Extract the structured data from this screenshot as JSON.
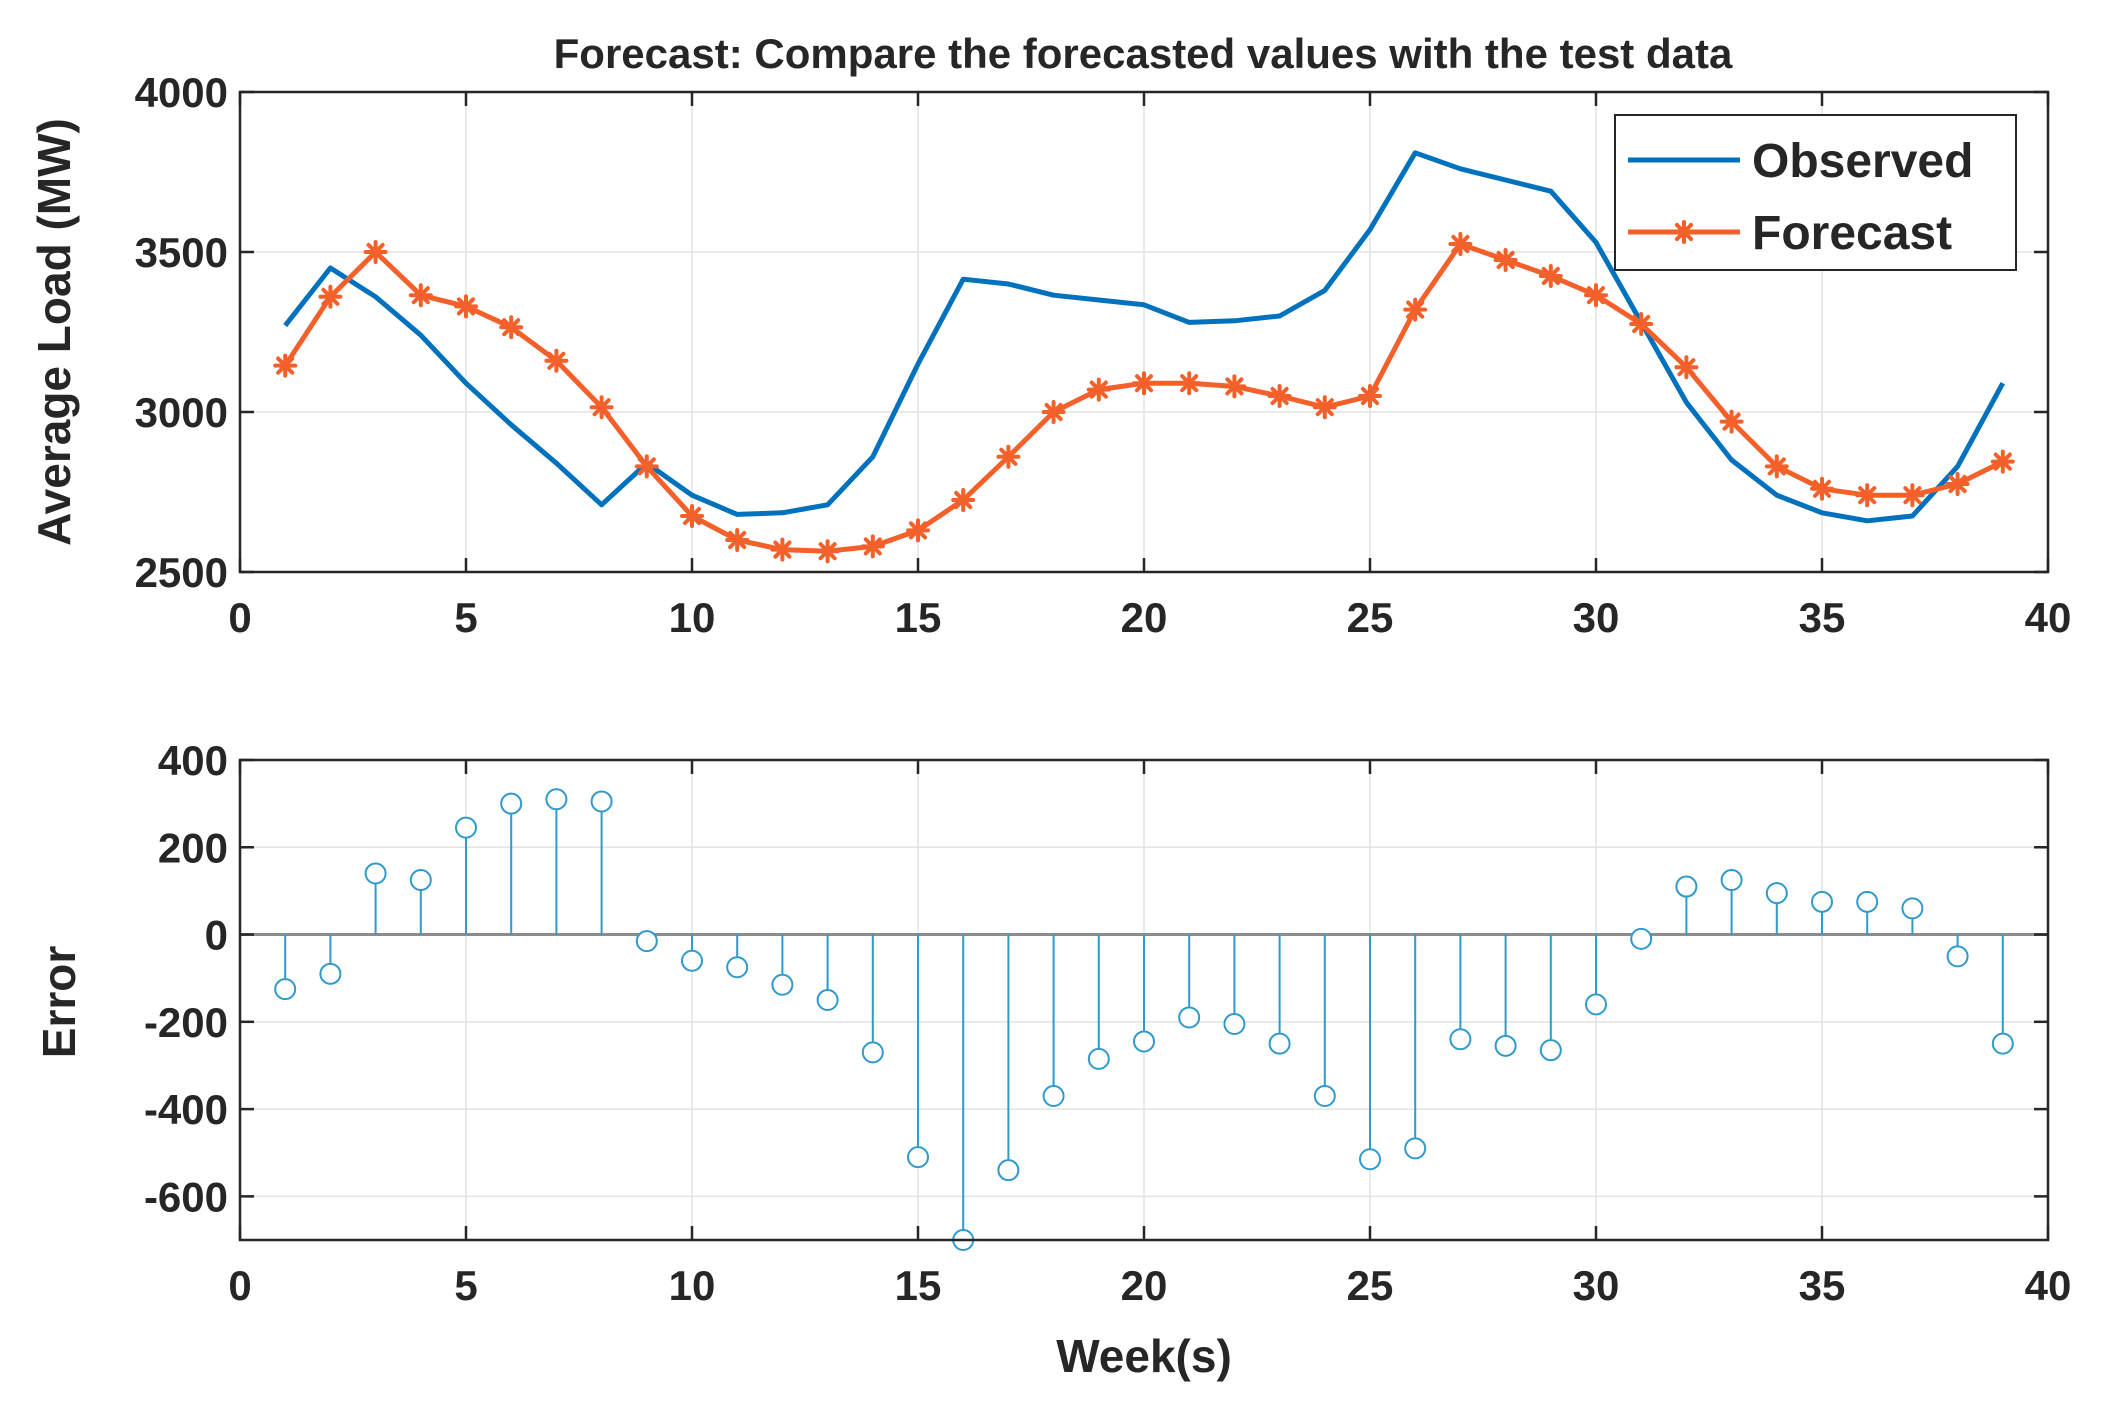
{
  "colors": {
    "observed": "#0072BD",
    "forecast": "#F4602A",
    "error": "#2F9ACB",
    "baseline": "#8C8C8C",
    "grid": "#E3E3E3",
    "axes": "#262626"
  },
  "chart_data": [
    {
      "type": "line",
      "title": "Forecast: Compare the forecasted values with the test data",
      "xlabel": "",
      "ylabel": "Average Load (MW)",
      "xlim": [
        0,
        40
      ],
      "ylim": [
        2500,
        4000
      ],
      "xticks": [
        0,
        5,
        10,
        15,
        20,
        25,
        30,
        35,
        40
      ],
      "yticks": [
        2500,
        3000,
        3500,
        4000
      ],
      "xtick_labels": [
        "0",
        "5",
        "10",
        "15",
        "20",
        "25",
        "30",
        "35",
        "40"
      ],
      "ytick_labels": [
        "2500",
        "3000",
        "3500",
        "4000"
      ],
      "grid": true,
      "legend_position": "top-right",
      "x": [
        1,
        2,
        3,
        4,
        5,
        6,
        7,
        8,
        9,
        10,
        11,
        12,
        13,
        14,
        15,
        16,
        17,
        18,
        19,
        20,
        21,
        22,
        23,
        24,
        25,
        26,
        27,
        28,
        29,
        30,
        31,
        32,
        33,
        34,
        35,
        36,
        37,
        38,
        39
      ],
      "series": [
        {
          "name": "Observed",
          "marker": "none",
          "values": [
            3270,
            3450,
            3360,
            3240,
            3090,
            2960,
            2840,
            2710,
            2840,
            2740,
            2680,
            2685,
            2710,
            2860,
            3150,
            3415,
            3400,
            3365,
            3350,
            3335,
            3280,
            3285,
            3300,
            3380,
            3570,
            3810,
            3760,
            3725,
            3690,
            3530,
            3280,
            3030,
            2850,
            2740,
            2685,
            2660,
            2675,
            2830,
            3090
          ]
        },
        {
          "name": "Forecast",
          "marker": "asterisk",
          "values": [
            3145,
            3360,
            3500,
            3365,
            3330,
            3265,
            3160,
            3015,
            2830,
            2675,
            2600,
            2570,
            2565,
            2580,
            2630,
            2725,
            2860,
            3000,
            3070,
            3090,
            3090,
            3080,
            3050,
            3015,
            3050,
            3320,
            3525,
            3475,
            3425,
            3365,
            3275,
            3140,
            2970,
            2830,
            2760,
            2740,
            2740,
            2775,
            2845
          ]
        }
      ]
    },
    {
      "type": "stem",
      "title": "",
      "xlabel": "Week(s)",
      "ylabel": "Error",
      "xlim": [
        0,
        40
      ],
      "ylim": [
        -700,
        400
      ],
      "xticks": [
        0,
        5,
        10,
        15,
        20,
        25,
        30,
        35,
        40
      ],
      "yticks": [
        -600,
        -400,
        -200,
        0,
        200,
        400
      ],
      "xtick_labels": [
        "0",
        "5",
        "10",
        "15",
        "20",
        "25",
        "30",
        "35",
        "40"
      ],
      "ytick_labels": [
        "-600",
        "-400",
        "-200",
        "0",
        "200",
        "400"
      ],
      "grid": true,
      "x": [
        1,
        2,
        3,
        4,
        5,
        6,
        7,
        8,
        9,
        10,
        11,
        12,
        13,
        14,
        15,
        16,
        17,
        18,
        19,
        20,
        21,
        22,
        23,
        24,
        25,
        26,
        27,
        28,
        29,
        30,
        31,
        32,
        33,
        34,
        35,
        36,
        37,
        38,
        39
      ],
      "series": [
        {
          "name": "Error",
          "marker": "circle",
          "values": [
            -125,
            -90,
            140,
            125,
            245,
            300,
            310,
            305,
            -15,
            -60,
            -75,
            -115,
            -150,
            -270,
            -510,
            -700,
            -540,
            -370,
            -285,
            -245,
            -190,
            -205,
            -250,
            -370,
            -515,
            -490,
            -240,
            -255,
            -265,
            -160,
            -10,
            110,
            125,
            95,
            75,
            75,
            60,
            -50,
            -250
          ]
        }
      ]
    }
  ]
}
